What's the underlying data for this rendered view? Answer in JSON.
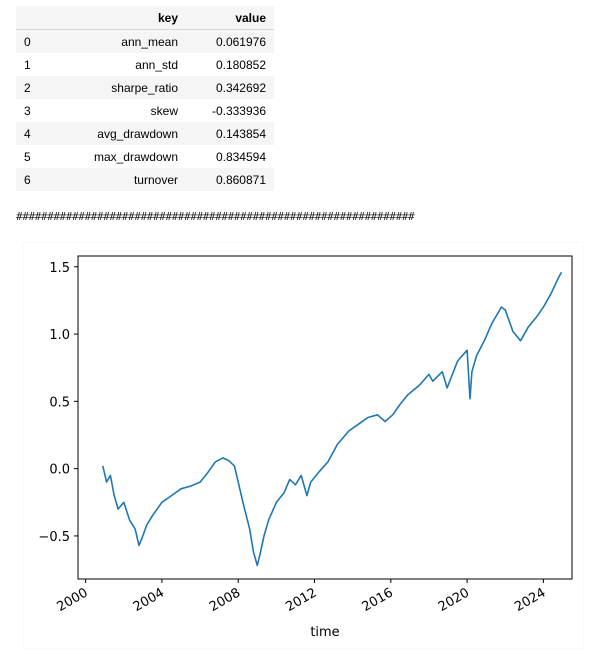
{
  "table": {
    "columns": [
      "key",
      "value"
    ],
    "rows": [
      {
        "idx": "0",
        "key": "ann_mean",
        "value": "0.061976"
      },
      {
        "idx": "1",
        "key": "ann_std",
        "value": "0.180852"
      },
      {
        "idx": "2",
        "key": "sharpe_ratio",
        "value": "0.342692"
      },
      {
        "idx": "3",
        "key": "skew",
        "value": "-0.333936"
      },
      {
        "idx": "4",
        "key": "avg_drawdown",
        "value": "0.143854"
      },
      {
        "idx": "5",
        "key": "max_drawdown",
        "value": "0.834594"
      },
      {
        "idx": "6",
        "key": "turnover",
        "value": "0.860871"
      }
    ]
  },
  "divider": "################################################################",
  "chart_data": {
    "type": "line",
    "xlabel": "time",
    "ylabel": "",
    "xlim": [
      1999.6,
      2025.5
    ],
    "ylim": [
      -0.82,
      1.58
    ],
    "xticks": [
      "2000",
      "2004",
      "2008",
      "2012",
      "2016",
      "2020",
      "2024"
    ],
    "yticks": [
      "−0.5",
      "0.0",
      "0.5",
      "1.0",
      "1.5"
    ],
    "grid": false,
    "color": "#1f77b4",
    "series": [
      {
        "x": [
          2000.9,
          2001.1,
          2001.3,
          2001.5,
          2001.7,
          2002.0,
          2002.3,
          2002.6,
          2002.8,
          2003.0,
          2003.2,
          2003.5,
          2004.0,
          2004.5,
          2005.0,
          2005.5,
          2006.0,
          2006.4,
          2006.8,
          2007.2,
          2007.5,
          2007.8,
          2008.0,
          2008.3,
          2008.6,
          2008.8,
          2009.0,
          2009.15,
          2009.35,
          2009.6,
          2010.0,
          2010.4,
          2010.7,
          2011.0,
          2011.3,
          2011.6,
          2011.8,
          2012.2,
          2012.7,
          2013.2,
          2013.8,
          2014.3,
          2014.8,
          2015.3,
          2015.7,
          2016.1,
          2016.5,
          2016.9,
          2017.5,
          2018.0,
          2018.2,
          2018.7,
          2018.95,
          2019.5,
          2020.0,
          2020.15,
          2020.25,
          2020.5,
          2020.9,
          2021.3,
          2021.8,
          2022.0,
          2022.4,
          2022.8,
          2023.2,
          2023.6,
          2024.0,
          2024.4,
          2024.8,
          2024.95
        ],
        "y": [
          0.02,
          -0.1,
          -0.05,
          -0.2,
          -0.3,
          -0.25,
          -0.38,
          -0.45,
          -0.57,
          -0.5,
          -0.42,
          -0.35,
          -0.25,
          -0.2,
          -0.15,
          -0.13,
          -0.1,
          -0.03,
          0.05,
          0.08,
          0.06,
          0.02,
          -0.1,
          -0.28,
          -0.45,
          -0.62,
          -0.72,
          -0.63,
          -0.5,
          -0.38,
          -0.25,
          -0.18,
          -0.08,
          -0.12,
          -0.05,
          -0.2,
          -0.1,
          -0.03,
          0.05,
          0.18,
          0.28,
          0.33,
          0.38,
          0.4,
          0.35,
          0.4,
          0.48,
          0.55,
          0.62,
          0.7,
          0.65,
          0.72,
          0.6,
          0.8,
          0.88,
          0.52,
          0.72,
          0.84,
          0.95,
          1.08,
          1.2,
          1.18,
          1.02,
          0.95,
          1.05,
          1.12,
          1.2,
          1.3,
          1.42,
          1.46
        ]
      }
    ]
  }
}
